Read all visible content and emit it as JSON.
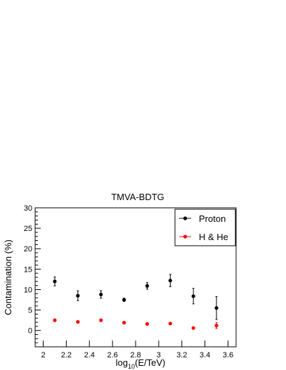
{
  "chart_data": {
    "type": "scatter",
    "title": "TMVA-BDTG",
    "xlabel_base": "log",
    "xlabel_sub": "10",
    "xlabel_rest": "(E/TeV)",
    "ylabel": "Contamination (%)",
    "xlim": [
      1.93,
      3.67
    ],
    "ylim": [
      -4,
      30
    ],
    "xticks": [
      2,
      2.2,
      2.4,
      2.6,
      2.8,
      3,
      3.2,
      3.4,
      3.6
    ],
    "xtick_labels": [
      "2",
      "2.2",
      "2.4",
      "2.6",
      "2.8",
      "3",
      "3.2",
      "3.4",
      "3.6"
    ],
    "yticks": [
      0,
      5,
      10,
      15,
      20,
      25,
      30
    ],
    "ytick_labels": [
      "0",
      "5",
      "10",
      "15",
      "20",
      "25",
      "30"
    ],
    "legend_position": "top-right",
    "series": [
      {
        "name": "Proton",
        "color": "#000000",
        "x": [
          2.1,
          2.3,
          2.5,
          2.7,
          2.9,
          3.1,
          3.3,
          3.5
        ],
        "y": [
          12.0,
          8.5,
          8.8,
          7.5,
          10.9,
          12.2,
          8.4,
          5.5
        ],
        "yerr": [
          1.1,
          1.2,
          0.9,
          0.4,
          0.8,
          1.5,
          1.9,
          2.8
        ]
      },
      {
        "name": "H & He",
        "color": "#ff0000",
        "x": [
          2.1,
          2.3,
          2.5,
          2.7,
          2.9,
          3.1,
          3.3,
          3.5
        ],
        "y": [
          2.5,
          2.1,
          2.5,
          1.9,
          1.6,
          1.7,
          0.6,
          1.2
        ],
        "yerr": [
          0.2,
          0.2,
          0.2,
          0.2,
          0.2,
          0.2,
          0.2,
          0.7
        ]
      }
    ]
  }
}
